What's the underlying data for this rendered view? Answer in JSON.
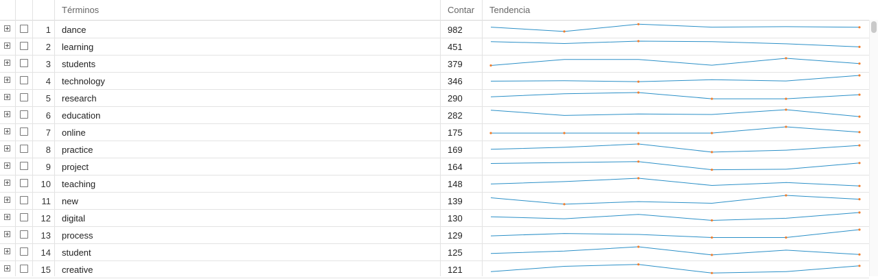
{
  "header": {
    "terms": "Términos",
    "count": "Contar",
    "trend": "Tendencia"
  },
  "colors": {
    "line": "#2a8fc7",
    "dot": "#f07e2e"
  },
  "rows": [
    {
      "index": "1",
      "term": "dance",
      "count": "982",
      "trend": [
        0.33,
        0.78,
        0.02,
        0.33,
        0.28,
        0.34
      ]
    },
    {
      "index": "2",
      "term": "learning",
      "count": "451",
      "trend": [
        0.05,
        0.25,
        0.0,
        0.06,
        0.28,
        0.6
      ]
    },
    {
      "index": "3",
      "term": "students",
      "count": "379",
      "trend": [
        0.75,
        0.12,
        0.12,
        0.72,
        0.0,
        0.55
      ]
    },
    {
      "index": "4",
      "term": "technology",
      "count": "346",
      "trend": [
        0.6,
        0.55,
        0.65,
        0.45,
        0.58,
        0.0
      ]
    },
    {
      "index": "5",
      "term": "research",
      "count": "290",
      "trend": [
        0.45,
        0.12,
        0.0,
        0.65,
        0.65,
        0.22
      ]
    },
    {
      "index": "6",
      "term": "education",
      "count": "282",
      "trend": [
        0.05,
        0.6,
        0.45,
        0.5,
        0.0,
        0.72
      ]
    },
    {
      "index": "7",
      "term": "online",
      "count": "175",
      "trend": [
        0.65,
        0.65,
        0.65,
        0.65,
        0.0,
        0.55
      ]
    },
    {
      "index": "8",
      "term": "practice",
      "count": "169",
      "trend": [
        0.55,
        0.35,
        0.0,
        0.85,
        0.65,
        0.15
      ]
    },
    {
      "index": "9",
      "term": "project",
      "count": "164",
      "trend": [
        0.25,
        0.15,
        0.05,
        0.9,
        0.85,
        0.2
      ]
    },
    {
      "index": "10",
      "term": "teaching",
      "count": "148",
      "trend": [
        0.6,
        0.35,
        0.0,
        0.75,
        0.45,
        0.8
      ]
    },
    {
      "index": "11",
      "term": "new",
      "count": "139",
      "trend": [
        0.25,
        0.92,
        0.65,
        0.82,
        0.0,
        0.4
      ]
    },
    {
      "index": "12",
      "term": "digital",
      "count": "130",
      "trend": [
        0.45,
        0.65,
        0.2,
        0.82,
        0.6,
        0.0
      ]
    },
    {
      "index": "13",
      "term": "process",
      "count": "129",
      "trend": [
        0.65,
        0.4,
        0.5,
        0.82,
        0.82,
        0.0
      ]
    },
    {
      "index": "14",
      "term": "student",
      "count": "125",
      "trend": [
        0.7,
        0.45,
        0.0,
        0.85,
        0.35,
        0.8
      ]
    },
    {
      "index": "15",
      "term": "creative",
      "count": "121",
      "trend": [
        0.8,
        0.25,
        0.05,
        0.95,
        0.8,
        0.2
      ]
    }
  ]
}
